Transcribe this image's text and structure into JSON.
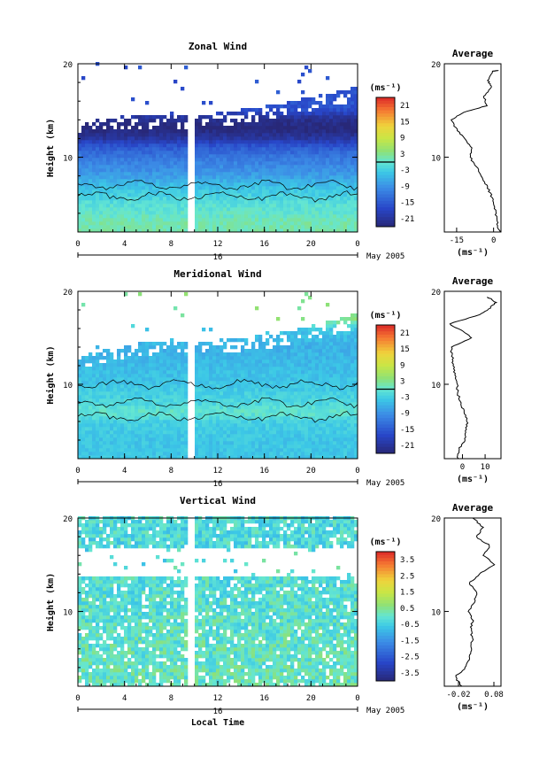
{
  "panels": [
    {
      "title": "Zonal Wind",
      "field": "zonal",
      "ylabel": "Height (km)",
      "y_ticks": [
        "20",
        "10"
      ],
      "x_ticks": [
        "0",
        "4",
        "8",
        "12",
        "16",
        "20",
        "0"
      ],
      "date_label": "16",
      "month_label": "May 2005",
      "colorbar_unit": "(ms⁻¹)",
      "colorbar_ticks": [
        "21",
        "15",
        "9",
        "3",
        "-3",
        "-9",
        "-15",
        "-21"
      ],
      "avg_title": "Average",
      "avg_y_ticks": [
        "20",
        "10"
      ],
      "avg_x_ticks": [
        "-15",
        "0"
      ],
      "avg_xlabel": "(ms⁻¹)"
    },
    {
      "title": "Meridional Wind",
      "field": "meridional",
      "ylabel": "Height (km)",
      "y_ticks": [
        "20",
        "10"
      ],
      "x_ticks": [
        "0",
        "4",
        "8",
        "12",
        "16",
        "20",
        "0"
      ],
      "date_label": "16",
      "month_label": "May 2005",
      "colorbar_unit": "(ms⁻¹)",
      "colorbar_ticks": [
        "21",
        "15",
        "9",
        "3",
        "-3",
        "-9",
        "-15",
        "-21"
      ],
      "avg_title": "Average",
      "avg_y_ticks": [
        "20",
        "10"
      ],
      "avg_x_ticks": [
        "0",
        "10"
      ],
      "avg_xlabel": "(ms⁻¹)"
    },
    {
      "title": "Vertical Wind",
      "field": "vertical",
      "ylabel": "Height (km)",
      "y_ticks": [
        "20",
        "10"
      ],
      "x_ticks": [
        "0",
        "4",
        "8",
        "12",
        "16",
        "20",
        "0"
      ],
      "date_label": "16",
      "month_label": "May 2005",
      "colorbar_unit": "(ms⁻¹)",
      "colorbar_ticks": [
        "3.5",
        "2.5",
        "1.5",
        "0.5",
        "-0.5",
        "-1.5",
        "-2.5",
        "-3.5"
      ],
      "avg_title": "Average",
      "avg_y_ticks": [
        "20",
        "10"
      ],
      "avg_x_ticks": [
        "-0.02",
        "0.08"
      ],
      "avg_xlabel": "(ms⁻¹)",
      "xlabel": "Local Time"
    }
  ],
  "chart_data": [
    {
      "type": "heatmap",
      "title": "Zonal Wind",
      "xlabel": "",
      "ylabel": "Height (km)",
      "x_range_hours": [
        0,
        24
      ],
      "y_range_km": [
        2,
        20
      ],
      "color_range": [
        -24,
        24
      ],
      "colorbar_contour_at": 0,
      "data_gap_hours": [
        9.4,
        9.9
      ],
      "profile_by_height": [
        {
          "z": 3,
          "u": 1.5
        },
        {
          "z": 4,
          "u": 0
        },
        {
          "z": 5,
          "u": -1
        },
        {
          "z": 6,
          "u": -3
        },
        {
          "z": 7,
          "u": -5
        },
        {
          "z": 8,
          "u": -8
        },
        {
          "z": 9,
          "u": -10
        },
        {
          "z": 10,
          "u": -12
        },
        {
          "z": 11,
          "u": -15
        },
        {
          "z": 11.5,
          "u": -18
        },
        {
          "z": 12,
          "u": -21
        },
        {
          "z": 13,
          "u": -24
        },
        {
          "z": 14,
          "u": -22
        },
        {
          "z": 15,
          "u": -16
        }
      ],
      "top_height_by_hour": [
        {
          "x": 0,
          "z": 12.5
        },
        {
          "x": 4,
          "z": 13.5
        },
        {
          "x": 8,
          "z": 13.5
        },
        {
          "x": 12,
          "z": 13.8
        },
        {
          "x": 16,
          "z": 14.5
        },
        {
          "x": 20,
          "z": 15.5
        },
        {
          "x": 24,
          "z": 16.5
        }
      ],
      "zero_contour_heights_km": [
        5.8,
        7.0
      ]
    },
    {
      "type": "heatmap",
      "title": "Meridional Wind",
      "xlabel": "",
      "ylabel": "Height (km)",
      "x_range_hours": [
        0,
        24
      ],
      "y_range_km": [
        2,
        20
      ],
      "color_range": [
        -24,
        24
      ],
      "colorbar_contour_at": 0,
      "data_gap_hours": [
        9.4,
        9.9
      ],
      "profile_by_height": [
        {
          "z": 2,
          "v": -4
        },
        {
          "z": 4,
          "v": -4
        },
        {
          "z": 6,
          "v": -3
        },
        {
          "z": 7,
          "v": 0
        },
        {
          "z": 8,
          "v": -2
        },
        {
          "z": 10,
          "v": -4
        },
        {
          "z": 12,
          "v": -5
        },
        {
          "z": 14,
          "v": -6
        },
        {
          "z": 16,
          "v": -4
        },
        {
          "z": 17,
          "v": 3
        }
      ],
      "top_height_by_hour": [
        {
          "x": 0,
          "z": 12.2
        },
        {
          "x": 4,
          "z": 13.5
        },
        {
          "x": 8,
          "z": 14
        },
        {
          "x": 12,
          "z": 14
        },
        {
          "x": 16,
          "z": 14.5
        },
        {
          "x": 20,
          "z": 15.5
        },
        {
          "x": 24,
          "z": 16.8
        }
      ],
      "zero_contour_heights_km": [
        6.5,
        8.0,
        10.0
      ]
    },
    {
      "type": "heatmap",
      "title": "Vertical Wind",
      "xlabel": "Local Time",
      "ylabel": "Height (km)",
      "x_range_hours": [
        0,
        24
      ],
      "y_range_km": [
        2,
        20
      ],
      "color_range": [
        -4,
        4
      ],
      "data_gap_hours": [
        9.4,
        9.9
      ],
      "profile_by_height": [
        {
          "z": 2,
          "w": 0.1
        },
        {
          "z": 6,
          "w": 0
        },
        {
          "z": 10,
          "w": -0.1
        },
        {
          "z": 14,
          "w": -0.2
        },
        {
          "z": 18,
          "w": -0.3
        },
        {
          "z": 20,
          "w": -0.3
        }
      ],
      "missing_band_km": [
        13.5,
        16.8
      ]
    },
    {
      "type": "line",
      "title": "Average",
      "xlabel": "(ms⁻¹)",
      "ylabel": "",
      "xlim": [
        -20,
        3
      ],
      "ylim": [
        2,
        20
      ],
      "points": [
        {
          "x": 2.5,
          "y": 2
        },
        {
          "x": 1.5,
          "y": 3
        },
        {
          "x": 1,
          "y": 4
        },
        {
          "x": 0,
          "y": 5
        },
        {
          "x": -1,
          "y": 6
        },
        {
          "x": -3,
          "y": 7
        },
        {
          "x": -5,
          "y": 8
        },
        {
          "x": -7,
          "y": 9
        },
        {
          "x": -9.5,
          "y": 10
        },
        {
          "x": -9,
          "y": 11
        },
        {
          "x": -12,
          "y": 12
        },
        {
          "x": -15,
          "y": 13
        },
        {
          "x": -17,
          "y": 14
        },
        {
          "x": -12,
          "y": 14.8
        },
        {
          "x": -3,
          "y": 15.5
        },
        {
          "x": -4,
          "y": 16.5
        },
        {
          "x": -1,
          "y": 17.5
        },
        {
          "x": -2,
          "y": 18.2
        },
        {
          "x": 0,
          "y": 19.2
        },
        {
          "x": 2,
          "y": 19.3
        }
      ]
    },
    {
      "type": "line",
      "title": "Average",
      "xlabel": "(ms⁻¹)",
      "ylabel": "",
      "xlim": [
        -8,
        17
      ],
      "ylim": [
        2,
        20
      ],
      "points": [
        {
          "x": -2,
          "y": 2
        },
        {
          "x": -1.5,
          "y": 3
        },
        {
          "x": 1,
          "y": 4
        },
        {
          "x": 1.5,
          "y": 5
        },
        {
          "x": 2,
          "y": 6
        },
        {
          "x": 1,
          "y": 7
        },
        {
          "x": -1,
          "y": 8
        },
        {
          "x": -2,
          "y": 9
        },
        {
          "x": -2.5,
          "y": 10
        },
        {
          "x": -3.5,
          "y": 11
        },
        {
          "x": -4,
          "y": 12
        },
        {
          "x": -4.5,
          "y": 13
        },
        {
          "x": -5,
          "y": 14
        },
        {
          "x": 4,
          "y": 15
        },
        {
          "x": 0,
          "y": 15.7
        },
        {
          "x": -6,
          "y": 16.5
        },
        {
          "x": 8,
          "y": 17.5
        },
        {
          "x": 12,
          "y": 18.2
        },
        {
          "x": 15,
          "y": 18.8
        },
        {
          "x": 11,
          "y": 19.4
        }
      ]
    },
    {
      "type": "line",
      "title": "Average",
      "xlabel": "(ms⁻¹)",
      "ylabel": "",
      "xlim": [
        -0.06,
        0.1
      ],
      "ylim": [
        2,
        20
      ],
      "points": [
        {
          "x": -0.01,
          "y": 2
        },
        {
          "x": -0.03,
          "y": 3
        },
        {
          "x": 0.0,
          "y": 4
        },
        {
          "x": 0.01,
          "y": 5
        },
        {
          "x": 0.015,
          "y": 6
        },
        {
          "x": 0.02,
          "y": 7
        },
        {
          "x": 0.015,
          "y": 8
        },
        {
          "x": 0.02,
          "y": 9
        },
        {
          "x": 0.01,
          "y": 10
        },
        {
          "x": 0.025,
          "y": 11
        },
        {
          "x": 0.03,
          "y": 12
        },
        {
          "x": 0.01,
          "y": 13
        },
        {
          "x": 0.04,
          "y": 14
        },
        {
          "x": 0.08,
          "y": 15
        },
        {
          "x": 0.05,
          "y": 16
        },
        {
          "x": 0.07,
          "y": 17
        },
        {
          "x": 0.03,
          "y": 18
        },
        {
          "x": 0.05,
          "y": 19
        },
        {
          "x": 0.02,
          "y": 20
        }
      ]
    }
  ]
}
